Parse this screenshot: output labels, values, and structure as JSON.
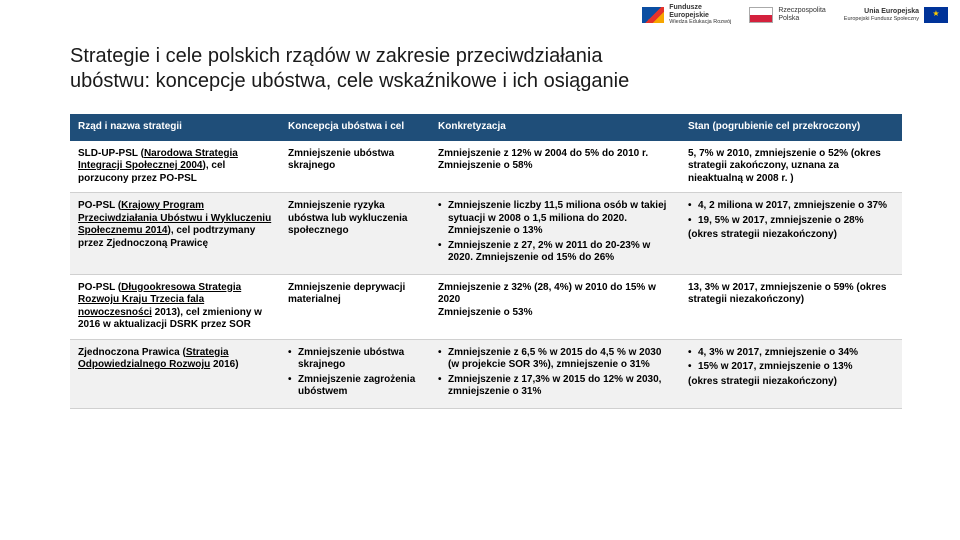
{
  "logos": {
    "fe": {
      "line1": "Fundusze",
      "line2": "Europejskie",
      "line3": "Wiedza Edukacja Rozwój"
    },
    "rp": {
      "line1": "Rzeczpospolita",
      "line2": "Polska"
    },
    "eu": {
      "line1": "Unia Europejska",
      "line2": "Europejski Fundusz Społeczny"
    }
  },
  "title": "Strategie i cele polskich rządów w zakresie przeciwdziałania ubóstwu: koncepcje ubóstwa, cele wskaźnikowe i ich osiąganie",
  "table": {
    "headers": {
      "h1": "Rząd i nazwa strategii",
      "h2": "Koncepcja ubóstwa i cel",
      "h3": "Konkretyzacja",
      "h4": "Stan (pogrubienie cel przekroczony)"
    },
    "rows": [
      {
        "gov_pre": "SLD-UP-PSL (",
        "gov_link": "Narodowa Strategia Integracji Społecznej 2004",
        "gov_post": "), cel porzucony przez PO-PSL",
        "concept": "Zmniejszenie ubóstwa skrajnego",
        "detail_plain": "Zmniejszenie z 12% w 2004 do 5% do 2010 r.\nZmniejszenie o 58%",
        "status_plain": "5, 7% w 2010, zmniejszenie o 52% (okres strategii zakończony, uznana za nieaktualną w 2008 r. )"
      },
      {
        "gov_pre": "PO-PSL (",
        "gov_link": "Krajowy Program Przeciwdziałania Ubóstwu i Wykluczeniu Społecznemu 2014",
        "gov_post": "), cel podtrzymany przez Zjednoczoną Prawicę",
        "concept": "Zmniejszenie ryzyka ubóstwa lub wykluczenia społecznego",
        "detail_list": [
          "Zmniejszenie liczby 11,5 miliona osób w takiej sytuacji w 2008 o 1,5 miliona do 2020. Zmniejszenie o 13%",
          "Zmniejszenie z 27, 2% w 2011 do 20-23% w 2020. Zmniejszenie od 15% do 26%"
        ],
        "status_list": [
          "4, 2 miliona w 2017, zmniejszenie o 37%",
          "19, 5% w 2017, zmniejszenie o 28%"
        ],
        "status_tail": "(okres strategii niezakończony)"
      },
      {
        "gov_pre": "PO-PSL (",
        "gov_link": "Długookresowa Strategia Rozwoju Kraju Trzecia fala nowoczesności",
        "gov_post": " 2013), cel zmieniony w 2016 w aktualizacji DSRK przez SOR",
        "concept": "Zmniejszenie deprywacji materialnej",
        "detail_plain": "Zmniejszenie z 32% (28, 4%) w 2010 do 15% w 2020\nZmniejszenie o 53%",
        "status_plain": "13, 3% w 2017, zmniejszenie o 59% (okres strategii niezakończony)"
      },
      {
        "gov_pre": "Zjednoczona Prawica (",
        "gov_link": "Strategia Odpowiedzialnego Rozwoju",
        "gov_post": " 2016)",
        "concept_list": [
          "Zmniejszenie ubóstwa skrajnego",
          "Zmniejszenie zagrożenia ubóstwem"
        ],
        "detail_list": [
          "Zmniejszenie z 6,5 % w 2015 do 4,5 % w 2030 (w projekcie SOR 3%), zmniejszenie o 31%",
          "Zmniejszenie z 17,3% w 2015 do 12% w 2030, zmniejszenie o 31%"
        ],
        "status_list": [
          "4, 3% w 2017, zmniejszenie o 34%",
          "15% w 2017, zmniejszenie o 13%"
        ],
        "status_tail": "(okres strategii niezakończony)"
      }
    ]
  }
}
